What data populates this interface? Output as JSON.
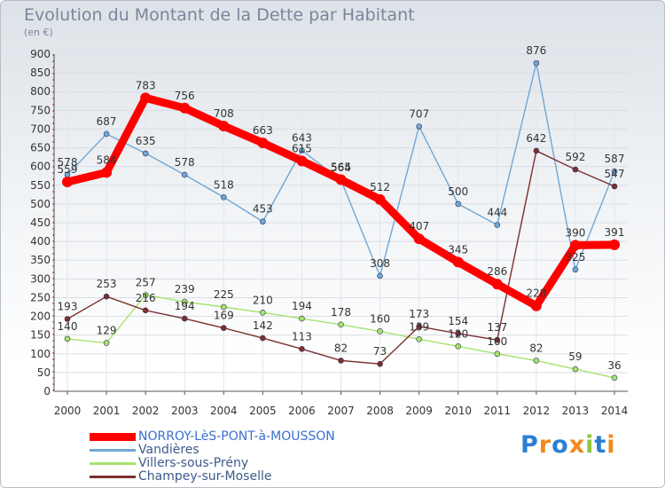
{
  "title": "Evolution du Montant de la Dette par Habitant",
  "unit_label": "(en €)",
  "logo_text": "Proxiti",
  "chart_data": {
    "type": "line",
    "title": "Evolution du Montant de la Dette par Habitant",
    "subtitle": "(en €)",
    "x": [
      "2000",
      "2001",
      "2002",
      "2003",
      "2004",
      "2005",
      "2006",
      "2007",
      "2008",
      "2009",
      "2010",
      "2011",
      "2012",
      "2013",
      "2014"
    ],
    "ylim": [
      0,
      900
    ],
    "yticks": [
      0,
      50,
      100,
      150,
      200,
      250,
      300,
      350,
      400,
      450,
      500,
      550,
      600,
      650,
      700,
      750,
      800,
      850,
      900
    ],
    "grid": true,
    "legend_position": "bottom-left",
    "series": [
      {
        "name": "NORROY-LèS-PONT-à-MOUSSON",
        "color": "#ff0000",
        "values": [
          559,
          584,
          783,
          756,
          708,
          663,
          615,
          565,
          512,
          407,
          345,
          286,
          228,
          390,
          391
        ]
      },
      {
        "name": "Vandières",
        "color": "#6fa7d6",
        "values": [
          578,
          687,
          635,
          578,
          518,
          453,
          643,
          564,
          308,
          707,
          500,
          444,
          876,
          325,
          587
        ]
      },
      {
        "name": "Villers-sous-Prény",
        "color": "#a6e36c",
        "values": [
          140,
          129,
          257,
          239,
          225,
          210,
          194,
          178,
          160,
          139,
          120,
          100,
          82,
          59,
          36
        ]
      },
      {
        "name": "Champey-sur-Moselle",
        "color": "#7b2f2f",
        "values": [
          193,
          253,
          216,
          194,
          169,
          142,
          113,
          82,
          73,
          173,
          154,
          137,
          642,
          592,
          547
        ]
      }
    ]
  }
}
